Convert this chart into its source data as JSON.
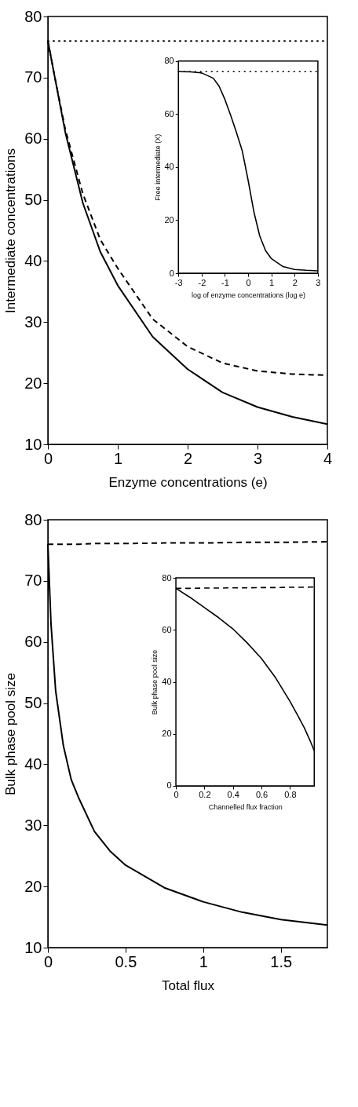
{
  "chart_data": [
    {
      "type": "line",
      "xlabel": "Enzyme concentrations (e)",
      "ylabel": "Intermediate concentrations",
      "xlim": [
        0,
        4
      ],
      "ylim": [
        10,
        80
      ],
      "xticks": [
        0,
        1,
        2,
        3,
        4
      ],
      "yticks": [
        10,
        20,
        30,
        40,
        50,
        60,
        70,
        80
      ],
      "grid": false,
      "marker": "none",
      "x": [
        0,
        0.1,
        0.25,
        0.5,
        0.75,
        1,
        1.5,
        2,
        2.5,
        3,
        3.5,
        4
      ],
      "series": [
        {
          "color": "#000000",
          "line_style": "solid",
          "values": [
            76,
            70,
            61,
            49.5,
            41.5,
            36,
            27.6,
            22.3,
            18.5,
            16.1,
            14.5,
            13.3
          ]
        },
        {
          "color": "#000000",
          "line_style": "dashed",
          "values": [
            76,
            70,
            61.5,
            51,
            43.5,
            38.8,
            30.5,
            26,
            23.3,
            22,
            21.5,
            21.3
          ]
        }
      ],
      "ref_lines": [
        {
          "axis": "y",
          "value": 76,
          "label": null,
          "color": "#000000",
          "line_style": "dotted"
        }
      ]
    },
    {
      "type": "line",
      "xlabel": "log of enzyme concentrations (log e)",
      "ylabel": "Free intermediate (X)",
      "xlim": [
        -3,
        3
      ],
      "ylim": [
        0,
        80
      ],
      "xticks": [
        -3,
        -2,
        -1,
        0,
        1,
        2,
        3
      ],
      "yticks": [
        0,
        20,
        40,
        60,
        80
      ],
      "grid": false,
      "marker": "none",
      "x": [
        -3,
        -2.5,
        -2,
        -1.5,
        -1.25,
        -1,
        -0.75,
        -0.5,
        -0.25,
        0,
        0.25,
        0.5,
        0.75,
        1,
        1.5,
        2,
        2.5,
        3
      ],
      "series": [
        {
          "color": "#000000",
          "line_style": "solid",
          "values": [
            76,
            75.9,
            75.5,
            73.5,
            70.5,
            65.5,
            59.5,
            53,
            46,
            35,
            23,
            14,
            8.5,
            5.5,
            2.5,
            1.4,
            1.1,
            0.9
          ]
        }
      ],
      "ref_lines": [
        {
          "axis": "y",
          "value": 76,
          "label": null,
          "color": "#000000",
          "line_style": "dotted"
        }
      ]
    },
    {
      "type": "line",
      "xlabel": "Total flux",
      "ylabel": "Bulk phase pool size",
      "xlim": [
        0,
        1.8
      ],
      "ylim": [
        10,
        80
      ],
      "xticks": [
        0,
        0.5,
        1,
        1.5
      ],
      "yticks": [
        10,
        20,
        30,
        40,
        50,
        60,
        70,
        80
      ],
      "grid": false,
      "marker": "none",
      "x": [
        0,
        0.02,
        0.05,
        0.1,
        0.15,
        0.2,
        0.3,
        0.4,
        0.5,
        0.75,
        1,
        1.25,
        1.5,
        1.8
      ],
      "series": [
        {
          "color": "#000000",
          "line_style": "solid",
          "values": [
            76,
            63,
            52,
            43,
            37.5,
            34.4,
            29,
            25.8,
            23.5,
            19.8,
            17.5,
            15.8,
            14.6,
            13.7
          ]
        },
        {
          "color": "#000000",
          "line_style": "dashed",
          "values": [
            76,
            76,
            76,
            76,
            76,
            76,
            76.1,
            76.1,
            76.1,
            76.2,
            76.2,
            76.3,
            76.3,
            76.4
          ]
        }
      ]
    },
    {
      "type": "line",
      "xlabel": "Channelled flux fraction",
      "ylabel": "Bulk phase pool size",
      "xlim": [
        0,
        0.97
      ],
      "ylim": [
        0,
        80
      ],
      "xticks": [
        0,
        0.2,
        0.4,
        0.6,
        0.8
      ],
      "yticks": [
        0,
        20,
        40,
        60,
        80
      ],
      "grid": false,
      "marker": "none",
      "x": [
        0,
        0.1,
        0.2,
        0.3,
        0.4,
        0.5,
        0.6,
        0.7,
        0.8,
        0.85,
        0.9,
        0.94,
        0.97
      ],
      "series": [
        {
          "color": "#000000",
          "line_style": "solid",
          "values": [
            76,
            72.5,
            68.6,
            64.7,
            60.4,
            55,
            49,
            41.5,
            32.5,
            27.5,
            22.4,
            17.5,
            13.5
          ]
        },
        {
          "color": "#000000",
          "line_style": "dashed",
          "values": [
            76,
            76,
            76.1,
            76.1,
            76.2,
            76.2,
            76.3,
            76.3,
            76.4,
            76.4,
            76.4,
            76.5,
            76.5
          ]
        }
      ]
    }
  ]
}
